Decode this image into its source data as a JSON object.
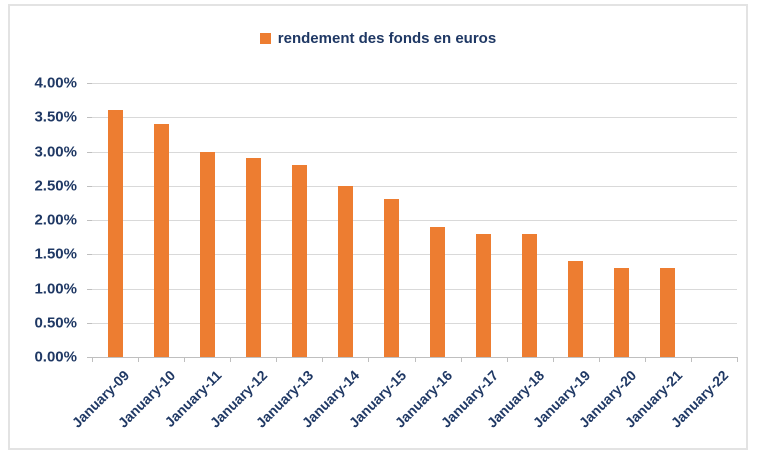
{
  "chart_data": {
    "type": "bar",
    "title": "rendement des fonds en euros",
    "legend": [
      "rendement des fonds en euros"
    ],
    "legend_position": "top-center",
    "categories": [
      "January-09",
      "January-10",
      "January-11",
      "January-12",
      "January-13",
      "January-14",
      "January-15",
      "January-16",
      "January-17",
      "January-18",
      "January-19",
      "January-20",
      "January-21",
      "January-22"
    ],
    "values": [
      3.6,
      3.4,
      3.0,
      2.9,
      2.8,
      2.5,
      2.3,
      1.9,
      1.8,
      1.8,
      1.4,
      1.3,
      1.3,
      null
    ],
    "unit": "%",
    "xlabel": "",
    "ylabel": "",
    "ylim": [
      0,
      4.0
    ],
    "ytick_step": 0.5,
    "ytick_labels": [
      "0.00%",
      "0.50%",
      "1.00%",
      "1.50%",
      "2.00%",
      "2.50%",
      "3.00%",
      "3.50%",
      "4.00%"
    ],
    "grid": true,
    "colors": {
      "bar": "#ED7D31",
      "text": "#1F3864",
      "gridline": "#D9D9D9",
      "axis": "#BFBFBF",
      "frame_border": "#E3E3E3"
    }
  }
}
